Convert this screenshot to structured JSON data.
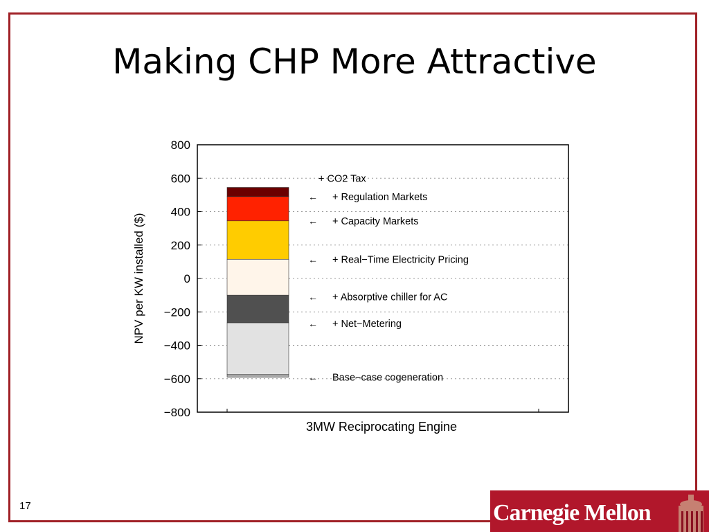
{
  "slide": {
    "title": "Making CHP More Attractive",
    "slide_number": "17",
    "logo_text": "Carnegie Mellon"
  },
  "colors": {
    "frame": "#a02026",
    "logo_bg": "#b1172b",
    "co2_tax": "#6b0000",
    "regulation_markets": "#ff2200",
    "capacity_markets": "#ffcc00",
    "real_time_pricing": "#fff5ea",
    "absorptive_chiller": "#505050",
    "net_metering": "#e2e2e2",
    "base_case": "#a8a8a8"
  },
  "chart_data": {
    "type": "bar",
    "stacked": true,
    "xlabel": "3MW Reciprocating Engine",
    "ylabel": "NPV per KW installed ($)",
    "ylim": [
      -800,
      800
    ],
    "yticks": [
      800,
      600,
      400,
      200,
      0,
      -200,
      -400,
      -600,
      -800
    ],
    "ytick_labels": [
      "800",
      "600",
      "400",
      "200",
      "0",
      "−200",
      "−400",
      "−600",
      "−800"
    ],
    "grid": "horizontal dotted",
    "categories": [
      "3MW Reciprocating Engine"
    ],
    "segments": [
      {
        "name": "Base−case cogeneration",
        "from": -590,
        "to": -575,
        "color_key": "base_case",
        "label_y": -590,
        "arrow": true
      },
      {
        "name": "+ Net−Metering",
        "from": -575,
        "to": -265,
        "color_key": "net_metering",
        "label_y": -270,
        "arrow": true
      },
      {
        "name": "+ Absorptive chiller for AC",
        "from": -265,
        "to": -100,
        "color_key": "absorptive_chiller",
        "label_y": -110,
        "arrow": true
      },
      {
        "name": "+ Real−Time Electricity Pricing",
        "from": -100,
        "to": 115,
        "color_key": "real_time_pricing",
        "label_y": 115,
        "arrow": true
      },
      {
        "name": "+ Capacity Markets",
        "from": 115,
        "to": 345,
        "color_key": "capacity_markets",
        "label_y": 345,
        "arrow": true
      },
      {
        "name": "+ Regulation Markets",
        "from": 345,
        "to": 490,
        "color_key": "regulation_markets",
        "label_y": 490,
        "arrow": true
      },
      {
        "name": "+ CO2 Tax",
        "from": 490,
        "to": 545,
        "color_key": "co2_tax",
        "label_y": 600,
        "arrow": false
      }
    ]
  }
}
